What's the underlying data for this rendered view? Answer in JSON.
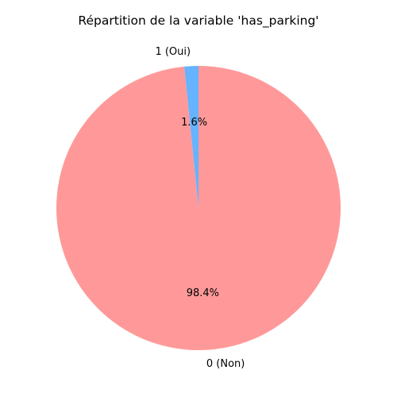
{
  "chart_data": {
    "type": "pie",
    "title": "Répartition de la variable 'has_parking'",
    "labels": [
      "1 (Oui)",
      "0 (Non)"
    ],
    "values": [
      1.6,
      98.4
    ],
    "percent_labels": [
      "1.6%",
      "98.4%"
    ],
    "colors": [
      "#66b3ff",
      "#ff9999"
    ],
    "start_angle": 90,
    "direction": "counterclockwise"
  }
}
